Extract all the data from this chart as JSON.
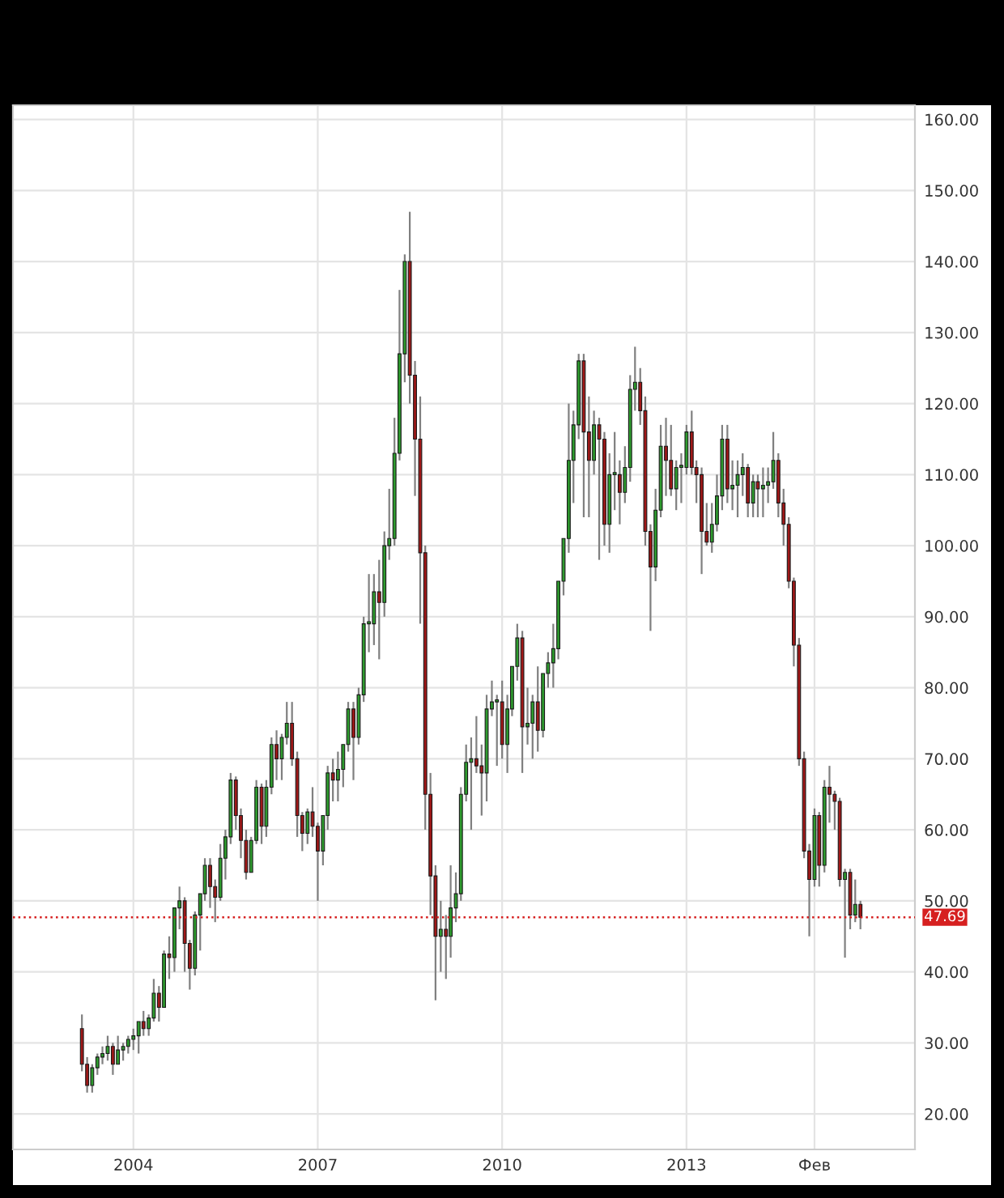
{
  "chart_data": {
    "type": "candlestick",
    "x": [
      "2003-03",
      "2003-04",
      "2003-05",
      "2003-06",
      "2003-07",
      "2003-08",
      "2003-09",
      "2003-10",
      "2003-11",
      "2003-12",
      "2004-01",
      "2004-02",
      "2004-03",
      "2004-04",
      "2004-05",
      "2004-06",
      "2004-07",
      "2004-08",
      "2004-09",
      "2004-10",
      "2004-11",
      "2004-12",
      "2005-01",
      "2005-02",
      "2005-03",
      "2005-04",
      "2005-05",
      "2005-06",
      "2005-07",
      "2005-08",
      "2005-09",
      "2005-10",
      "2005-11",
      "2005-12",
      "2006-01",
      "2006-02",
      "2006-03",
      "2006-04",
      "2006-05",
      "2006-06",
      "2006-07",
      "2006-08",
      "2006-09",
      "2006-10",
      "2006-11",
      "2006-12",
      "2007-01",
      "2007-02",
      "2007-03",
      "2007-04",
      "2007-05",
      "2007-06",
      "2007-07",
      "2007-08",
      "2007-09",
      "2007-10",
      "2007-11",
      "2007-12",
      "2008-01",
      "2008-02",
      "2008-03",
      "2008-04",
      "2008-05",
      "2008-06",
      "2008-07",
      "2008-08",
      "2008-09",
      "2008-10",
      "2008-11",
      "2008-12",
      "2009-01",
      "2009-02",
      "2009-03",
      "2009-04",
      "2009-05",
      "2009-06",
      "2009-07",
      "2009-08",
      "2009-09",
      "2009-10",
      "2009-11",
      "2009-12",
      "2010-01",
      "2010-02",
      "2010-03",
      "2010-04",
      "2010-05",
      "2010-06",
      "2010-07",
      "2010-08",
      "2010-09",
      "2010-10",
      "2010-11",
      "2010-12",
      "2011-01",
      "2011-02",
      "2011-03",
      "2011-04",
      "2011-05",
      "2011-06",
      "2011-07",
      "2011-08",
      "2011-09",
      "2011-10",
      "2011-11",
      "2011-12",
      "2012-01",
      "2012-02",
      "2012-03",
      "2012-04",
      "2012-05",
      "2012-06",
      "2012-07",
      "2012-08",
      "2012-09",
      "2012-10",
      "2012-11",
      "2012-12",
      "2013-01",
      "2013-02",
      "2013-03",
      "2013-04",
      "2013-05",
      "2013-06",
      "2013-07",
      "2013-08",
      "2013-09",
      "2013-10",
      "2013-11",
      "2013-12",
      "2014-01",
      "2014-02",
      "2014-03",
      "2014-04",
      "2014-05",
      "2014-06",
      "2014-07",
      "2014-08",
      "2014-09",
      "2014-10",
      "2014-11",
      "2014-12",
      "2015-01",
      "2015-02",
      "2015-03",
      "2015-04",
      "2015-05",
      "2015-06",
      "2015-07",
      "2015-08",
      "2015-09",
      "2015-10",
      "2015-11"
    ],
    "ohlc": [
      [
        32,
        34,
        26,
        27
      ],
      [
        27,
        28,
        23,
        24
      ],
      [
        24,
        27,
        23,
        26.5
      ],
      [
        26.5,
        28.5,
        25.5,
        28
      ],
      [
        28,
        29.5,
        27,
        28.5
      ],
      [
        28.5,
        31,
        27.5,
        29.5
      ],
      [
        29.5,
        30,
        25.5,
        27
      ],
      [
        27,
        31,
        27,
        29
      ],
      [
        29,
        30,
        27.5,
        29.5
      ],
      [
        29.5,
        31,
        28.5,
        30.5
      ],
      [
        30.5,
        32,
        29,
        31
      ],
      [
        31,
        33,
        28.5,
        33
      ],
      [
        33,
        34.5,
        31,
        32
      ],
      [
        32,
        34,
        31,
        33.5
      ],
      [
        33.5,
        39,
        33,
        37
      ],
      [
        37,
        38,
        33,
        35
      ],
      [
        35,
        43,
        35,
        42.5
      ],
      [
        42.5,
        45,
        39,
        42
      ],
      [
        42,
        49,
        40,
        49
      ],
      [
        49,
        52,
        46,
        50
      ],
      [
        50,
        50.5,
        40,
        44
      ],
      [
        44,
        44.5,
        37.5,
        40.5
      ],
      [
        40.5,
        48.5,
        39.5,
        48
      ],
      [
        48,
        51,
        43,
        51
      ],
      [
        51,
        56,
        50,
        55
      ],
      [
        55,
        56,
        49,
        52
      ],
      [
        52,
        53,
        47,
        50.5
      ],
      [
        50.5,
        58,
        50,
        56
      ],
      [
        56,
        60,
        53,
        59
      ],
      [
        59,
        68,
        58,
        67
      ],
      [
        67,
        67.5,
        60,
        62
      ],
      [
        62,
        63,
        56,
        58.5
      ],
      [
        58.5,
        60,
        53,
        54
      ],
      [
        54,
        59,
        54,
        58.5
      ],
      [
        58.5,
        67,
        58,
        66
      ],
      [
        66,
        66.5,
        58,
        60.5
      ],
      [
        60.5,
        67,
        59,
        66
      ],
      [
        66,
        73,
        65,
        72
      ],
      [
        72,
        74,
        67,
        70
      ],
      [
        70,
        73.5,
        67,
        73
      ],
      [
        73,
        78,
        72,
        75
      ],
      [
        75,
        78,
        69,
        70
      ],
      [
        70,
        71,
        59,
        62
      ],
      [
        62,
        62.5,
        57,
        59.5
      ],
      [
        59.5,
        63,
        58,
        62.5
      ],
      [
        62.5,
        66,
        59,
        60.5
      ],
      [
        60.5,
        61,
        50,
        57
      ],
      [
        57,
        62,
        55,
        62
      ],
      [
        62,
        69,
        60,
        68
      ],
      [
        68,
        70,
        64,
        67
      ],
      [
        67,
        71,
        64,
        68.5
      ],
      [
        68.5,
        72,
        66,
        72
      ],
      [
        72,
        78,
        71,
        77
      ],
      [
        77,
        78,
        67,
        73
      ],
      [
        73,
        80,
        72,
        79
      ],
      [
        79,
        90,
        78,
        89
      ],
      [
        89,
        96,
        85,
        89
      ],
      [
        89,
        96,
        86,
        93.5
      ],
      [
        93.5,
        98,
        84,
        92
      ],
      [
        92,
        102,
        90,
        100
      ],
      [
        100,
        108,
        98,
        101
      ],
      [
        101,
        118,
        100,
        113
      ],
      [
        113,
        136,
        112,
        127
      ],
      [
        127,
        141,
        123,
        140
      ],
      [
        140,
        147,
        120,
        124
      ],
      [
        124,
        126,
        107,
        115
      ],
      [
        115,
        121,
        89,
        99
      ],
      [
        99,
        100,
        60,
        65
      ],
      [
        65,
        68,
        48,
        53.5
      ],
      [
        53.5,
        55,
        36,
        45
      ],
      [
        45,
        50,
        40,
        46
      ],
      [
        46,
        48,
        39,
        45
      ],
      [
        45,
        55,
        42,
        49
      ],
      [
        49,
        54,
        47,
        51
      ],
      [
        51,
        66,
        50,
        65
      ],
      [
        65,
        72,
        64,
        69.5
      ],
      [
        69.5,
        73,
        60,
        70
      ],
      [
        70,
        76,
        68,
        69
      ],
      [
        69,
        72,
        62,
        68
      ],
      [
        68,
        79,
        64,
        77
      ],
      [
        77,
        81,
        76,
        78
      ],
      [
        78,
        79,
        69,
        78
      ],
      [
        78,
        81,
        70,
        72
      ],
      [
        72,
        79,
        68,
        77
      ],
      [
        77,
        83,
        76,
        83
      ],
      [
        83,
        89,
        81,
        87
      ],
      [
        87,
        88,
        68,
        74.5
      ],
      [
        74.5,
        80,
        72,
        75
      ],
      [
        75,
        79,
        70,
        78
      ],
      [
        78,
        83,
        71,
        74
      ],
      [
        74,
        82,
        73,
        82
      ],
      [
        82,
        85,
        80,
        83.5
      ],
      [
        83.5,
        89,
        80,
        85.5
      ],
      [
        85.5,
        95,
        84,
        95
      ],
      [
        95,
        101,
        93,
        101
      ],
      [
        101,
        120,
        99,
        112
      ],
      [
        112,
        119,
        106,
        117
      ],
      [
        117,
        127,
        115,
        126
      ],
      [
        126,
        127,
        104,
        116
      ],
      [
        116,
        121,
        104,
        112
      ],
      [
        112,
        119,
        110,
        117
      ],
      [
        117,
        118,
        98,
        115
      ],
      [
        115,
        116,
        100,
        103
      ],
      [
        103,
        113,
        99,
        110
      ],
      [
        110,
        116,
        105,
        110
      ],
      [
        110,
        112,
        103,
        107.5
      ],
      [
        107.5,
        114,
        106,
        111
      ],
      [
        111,
        124,
        109,
        122
      ],
      [
        122,
        128,
        119,
        123
      ],
      [
        123,
        125,
        117,
        119
      ],
      [
        119,
        121,
        100,
        102
      ],
      [
        102,
        103,
        88,
        97
      ],
      [
        97,
        108,
        95,
        105
      ],
      [
        105,
        117,
        104,
        114
      ],
      [
        114,
        118,
        107,
        112
      ],
      [
        112,
        117,
        107,
        108
      ],
      [
        108,
        112,
        105,
        111
      ],
      [
        111,
        113,
        106,
        111
      ],
      [
        111,
        117,
        110,
        116
      ],
      [
        116,
        119,
        110,
        111
      ],
      [
        111,
        112,
        106,
        110
      ],
      [
        110,
        111,
        96,
        102
      ],
      [
        102,
        106,
        100,
        100.5
      ],
      [
        100.5,
        106,
        99,
        103
      ],
      [
        103,
        110,
        102,
        107
      ],
      [
        107,
        117,
        105,
        115
      ],
      [
        115,
        117,
        106,
        108
      ],
      [
        108,
        112,
        105,
        108.5
      ],
      [
        108.5,
        112,
        104,
        110
      ],
      [
        110,
        113,
        107,
        111
      ],
      [
        111,
        111.5,
        104,
        106
      ],
      [
        106,
        110,
        104,
        109
      ],
      [
        109,
        110,
        104,
        108
      ],
      [
        108,
        111,
        104,
        108.5
      ],
      [
        108.5,
        111,
        106,
        109
      ],
      [
        109,
        116,
        108,
        112
      ],
      [
        112,
        113,
        104,
        106
      ],
      [
        106,
        108,
        100,
        103
      ],
      [
        103,
        104,
        94,
        95
      ],
      [
        95,
        95.5,
        83,
        86
      ],
      [
        86,
        87,
        69,
        70
      ],
      [
        70,
        71,
        56,
        57
      ],
      [
        57,
        58,
        45,
        53
      ],
      [
        53,
        63,
        52,
        62
      ],
      [
        62,
        62.5,
        52,
        55
      ],
      [
        55,
        67,
        54,
        66
      ],
      [
        66,
        69,
        61,
        65
      ],
      [
        65,
        65.5,
        60,
        64
      ],
      [
        64,
        64.5,
        52,
        53
      ],
      [
        53,
        54.5,
        42,
        54
      ],
      [
        54,
        54.5,
        46,
        48
      ],
      [
        48,
        53,
        47,
        49.5
      ],
      [
        49.5,
        50,
        46,
        47.69
      ]
    ],
    "xlim": [
      "2002-01-15",
      "2016-09-20"
    ],
    "xticks": [
      {
        "value": "2004-01-01",
        "label": "2004"
      },
      {
        "value": "2007-01-01",
        "label": "2007"
      },
      {
        "value": "2010-01-01",
        "label": "2010"
      },
      {
        "value": "2013-01-01",
        "label": "2013"
      },
      {
        "value": "2015-02-01",
        "label": "Фев"
      }
    ],
    "ylim": [
      15,
      162
    ],
    "yticks": [
      {
        "value": 20,
        "label": "20.00"
      },
      {
        "value": 30,
        "label": "30.00"
      },
      {
        "value": 40,
        "label": "40.00"
      },
      {
        "value": 50,
        "label": "50.00"
      },
      {
        "value": 60,
        "label": "60.00"
      },
      {
        "value": 70,
        "label": "70.00"
      },
      {
        "value": 80,
        "label": "80.00"
      },
      {
        "value": 90,
        "label": "90.00"
      },
      {
        "value": 100,
        "label": "100.00"
      },
      {
        "value": 110,
        "label": "110.00"
      },
      {
        "value": 120,
        "label": "120.00"
      },
      {
        "value": 130,
        "label": "130.00"
      },
      {
        "value": 140,
        "label": "140.00"
      },
      {
        "value": 150,
        "label": "150.00"
      },
      {
        "value": 160,
        "label": "160.00"
      }
    ],
    "ref_lines": [
      {
        "axis": "y",
        "value": 47.69,
        "label": "47.69",
        "color": "#d62020",
        "line_style": "dotted"
      }
    ],
    "grid": true
  }
}
